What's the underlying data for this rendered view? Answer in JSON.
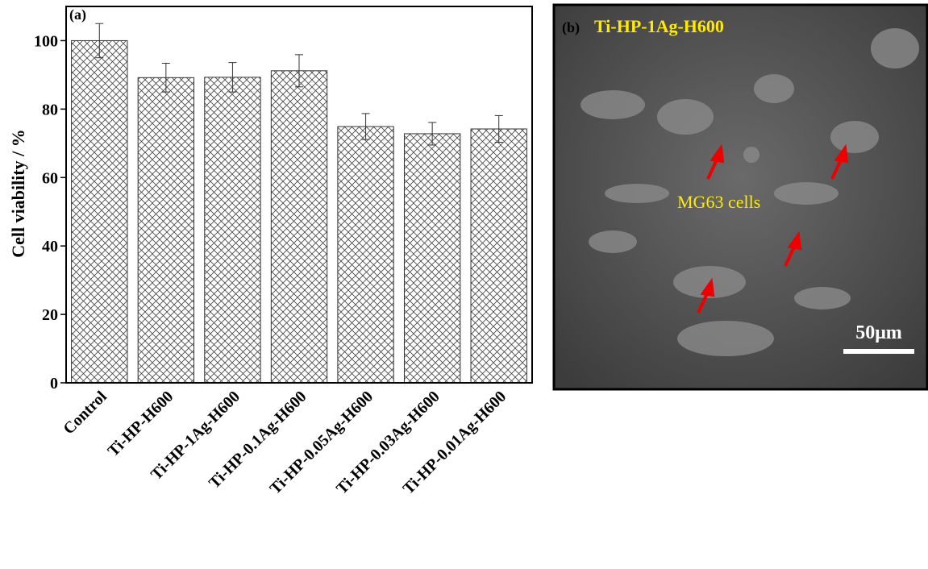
{
  "chart_data": {
    "type": "bar",
    "panel_label": "(a)",
    "y_label": "Cell viability / %",
    "categories": [
      "Control",
      "Ti-HP-H600",
      "Ti-HP-1Ag-H600",
      "Ti-HP-0.1Ag-H600",
      "Ti-HP-0.05Ag-H600",
      "Ti-HP-0.03Ag-H600",
      "Ti-HP-0.01Ag-H600"
    ],
    "values": [
      100,
      89.2,
      89.3,
      91.2,
      74.9,
      72.8,
      74.2
    ],
    "errors": [
      5,
      4.2,
      4.3,
      4.7,
      3.8,
      3.3,
      3.9
    ],
    "color": "#333333",
    "ylim": [
      0,
      110
    ],
    "yticks": [
      0,
      20,
      40,
      60,
      80,
      100
    ]
  },
  "panel_b": {
    "label": "(b)",
    "title": "Ti-HP-1Ag-H600",
    "annotation": "MG63 cells",
    "scale_bar": "50μm"
  }
}
